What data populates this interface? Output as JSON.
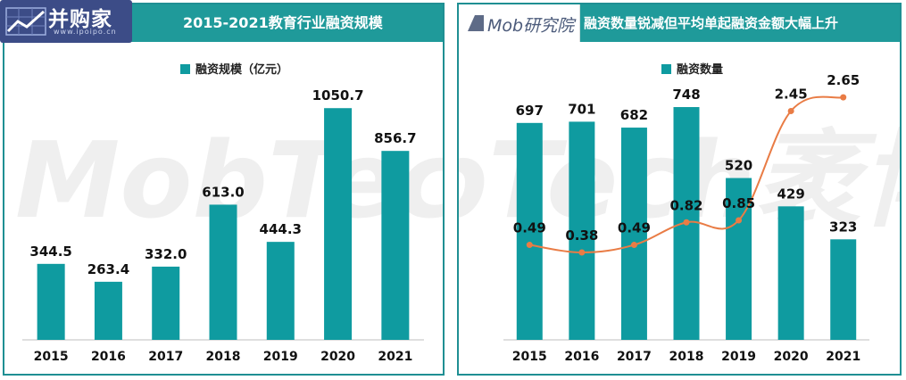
{
  "logo_left": {
    "main": "并购家",
    "sub": "www.ipoipo.cn",
    "icon": "chart-logo-icon"
  },
  "logo_right": {
    "main": "Mob研究院",
    "icon": "mob-logo-icon"
  },
  "watermark": {
    "text": "MobTech袤博"
  },
  "chart_data": [
    {
      "type": "bar",
      "title": "2015-2021教育行业融资规模",
      "categories": [
        "2015",
        "2016",
        "2017",
        "2018",
        "2019",
        "2020",
        "2021"
      ],
      "series": [
        {
          "name": "融资规模（亿元）",
          "values": [
            344.5,
            263.4,
            332.0,
            613.0,
            444.3,
            1050.7,
            856.7
          ],
          "labels": [
            "344.5",
            "263.4",
            "332.0",
            "613.0",
            "444.3",
            "1050.7",
            "856.7"
          ]
        }
      ],
      "ylim": [
        0,
        1270
      ],
      "grid": false,
      "legend": "top",
      "bar_color": "#0f9ba0"
    },
    {
      "type": "bar",
      "title": "融资数量锐减但平均单起融资金额大幅上升",
      "categories": [
        "2015",
        "2016",
        "2017",
        "2018",
        "2019",
        "2020",
        "2021"
      ],
      "series": [
        {
          "name": "融资数量",
          "type": "bar",
          "values": [
            697,
            701,
            682,
            748,
            520,
            429,
            323
          ],
          "labels": [
            "697",
            "701",
            "682",
            "748",
            "520",
            "429",
            "323"
          ]
        },
        {
          "type": "line",
          "values": [
            0.49,
            0.38,
            0.49,
            0.82,
            0.85,
            2.45,
            2.65
          ],
          "labels": [
            "0.49",
            "0.38",
            "0.49",
            "0.82",
            "0.85",
            "2.45",
            "2.65"
          ]
        }
      ],
      "ylim": [
        0,
        900
      ],
      "y2lim": [
        -0.9,
        3.2
      ],
      "grid": false,
      "legend": "top",
      "bar_color": "#0f9ba0",
      "line_color": "#e97c45"
    }
  ]
}
